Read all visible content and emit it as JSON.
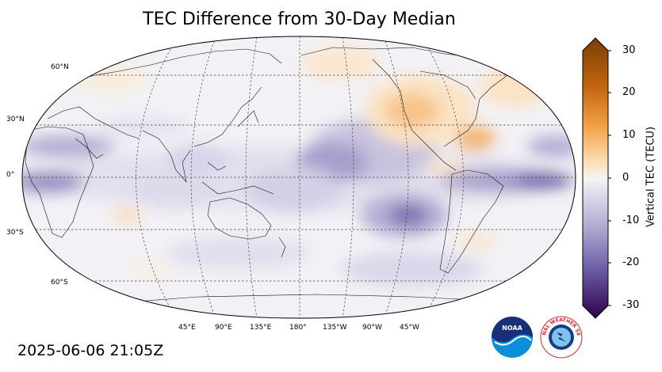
{
  "title": "TEC Difference from 30-Day Median",
  "timestamp": "2025-06-06 21:05Z",
  "lat_labels": [
    "60°N",
    "30°N",
    "0°",
    "30°S",
    "60°S"
  ],
  "lon_labels": [
    "45°E",
    "90°E",
    "135°E",
    "180°",
    "135°W",
    "90°W",
    "45°W"
  ],
  "colorbar": {
    "label": "Vertical TEC (TECU)",
    "ticks": [
      "30",
      "20",
      "10",
      "0",
      "-10",
      "-20",
      "-30"
    ],
    "range": [
      -30,
      30
    ],
    "colors": {
      "max": "#7a3d06",
      "high": "#e08214",
      "mid_high": "#fdb863",
      "zero": "#f4f4f4",
      "mid_low": "#b2abd2",
      "low": "#6a5a9e",
      "min": "#2d004b"
    }
  },
  "map": {
    "projection": "Robinson, centered 180°",
    "background_color": "#f3f2f6",
    "anomalies": [
      {
        "region": "North America",
        "sign": "positive",
        "tecu": 8
      },
      {
        "region": "Gulf of Mexico",
        "sign": "positive",
        "tecu": 12
      },
      {
        "region": "Alaska / Canada",
        "sign": "positive",
        "tecu": 4
      },
      {
        "region": "Central Pacific",
        "sign": "negative",
        "tecu": -12
      },
      {
        "region": "South Pacific",
        "sign": "negative",
        "tecu": -18
      },
      {
        "region": "Equatorial Atlantic",
        "sign": "negative",
        "tecu": -20
      },
      {
        "region": "Equatorial Africa",
        "sign": "negative",
        "tecu": -12
      }
    ]
  },
  "logos": {
    "noaa_text": "NOAA",
    "nws_text": "NATIONAL WEATHER SERVICE",
    "noaa_icon": "noaa-logo",
    "nws_icon": "nws-logo"
  }
}
